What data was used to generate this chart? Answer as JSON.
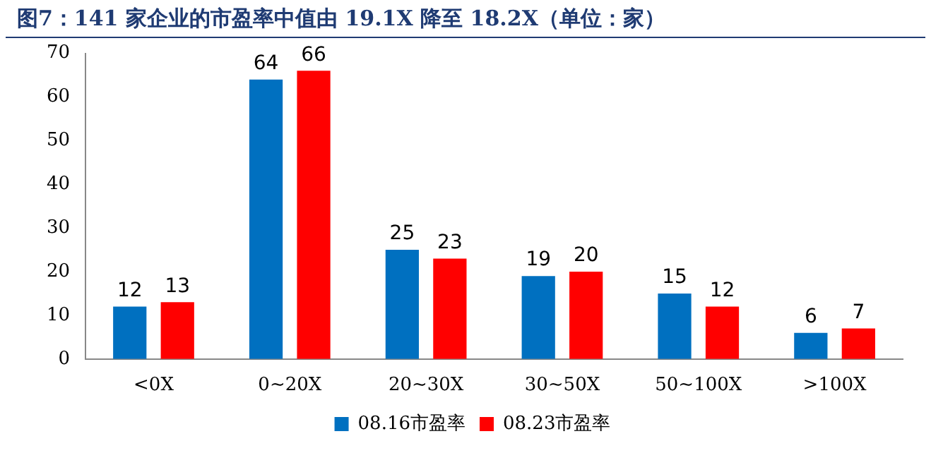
{
  "chart_data": {
    "type": "bar",
    "title": "图7：141 家企业的市盈率中值由 19.1X 降至 18.2X（单位：家）",
    "categories": [
      "<0X",
      "0~20X",
      "20~30X",
      "30~50X",
      "50~100X",
      ">100X"
    ],
    "series": [
      {
        "name": "08.16市盈率",
        "color": "#0070c0",
        "values": [
          12,
          64,
          25,
          19,
          15,
          6
        ]
      },
      {
        "name": "08.23市盈率",
        "color": "#ff0000",
        "values": [
          13,
          66,
          23,
          20,
          12,
          7
        ]
      }
    ],
    "ylim": [
      0,
      70
    ],
    "yticks": [
      0,
      10,
      20,
      30,
      40,
      50,
      60,
      70
    ],
    "grid": false,
    "legend": "bottom",
    "data_labels": true
  }
}
